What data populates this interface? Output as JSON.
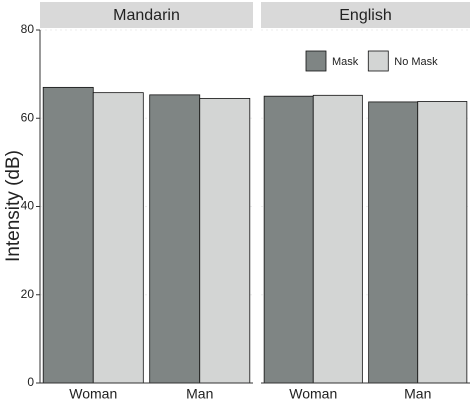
{
  "chart_data": {
    "type": "bar",
    "ylabel": "Intensity (dB)",
    "ylim": [
      0,
      80
    ],
    "yticks": [
      0,
      20,
      40,
      60,
      80
    ],
    "categories": [
      "Woman",
      "Man"
    ],
    "series": [
      {
        "name": "Mask",
        "color": "#7f8584"
      },
      {
        "name": "No Mask",
        "color": "#d3d5d4"
      }
    ],
    "facets": [
      {
        "title": "Mandarin",
        "values": [
          [
            67,
            65.3
          ],
          [
            65.8,
            64.5
          ]
        ]
      },
      {
        "title": "English",
        "values": [
          [
            65,
            63.7
          ],
          [
            65.2,
            63.8
          ]
        ]
      }
    ]
  }
}
